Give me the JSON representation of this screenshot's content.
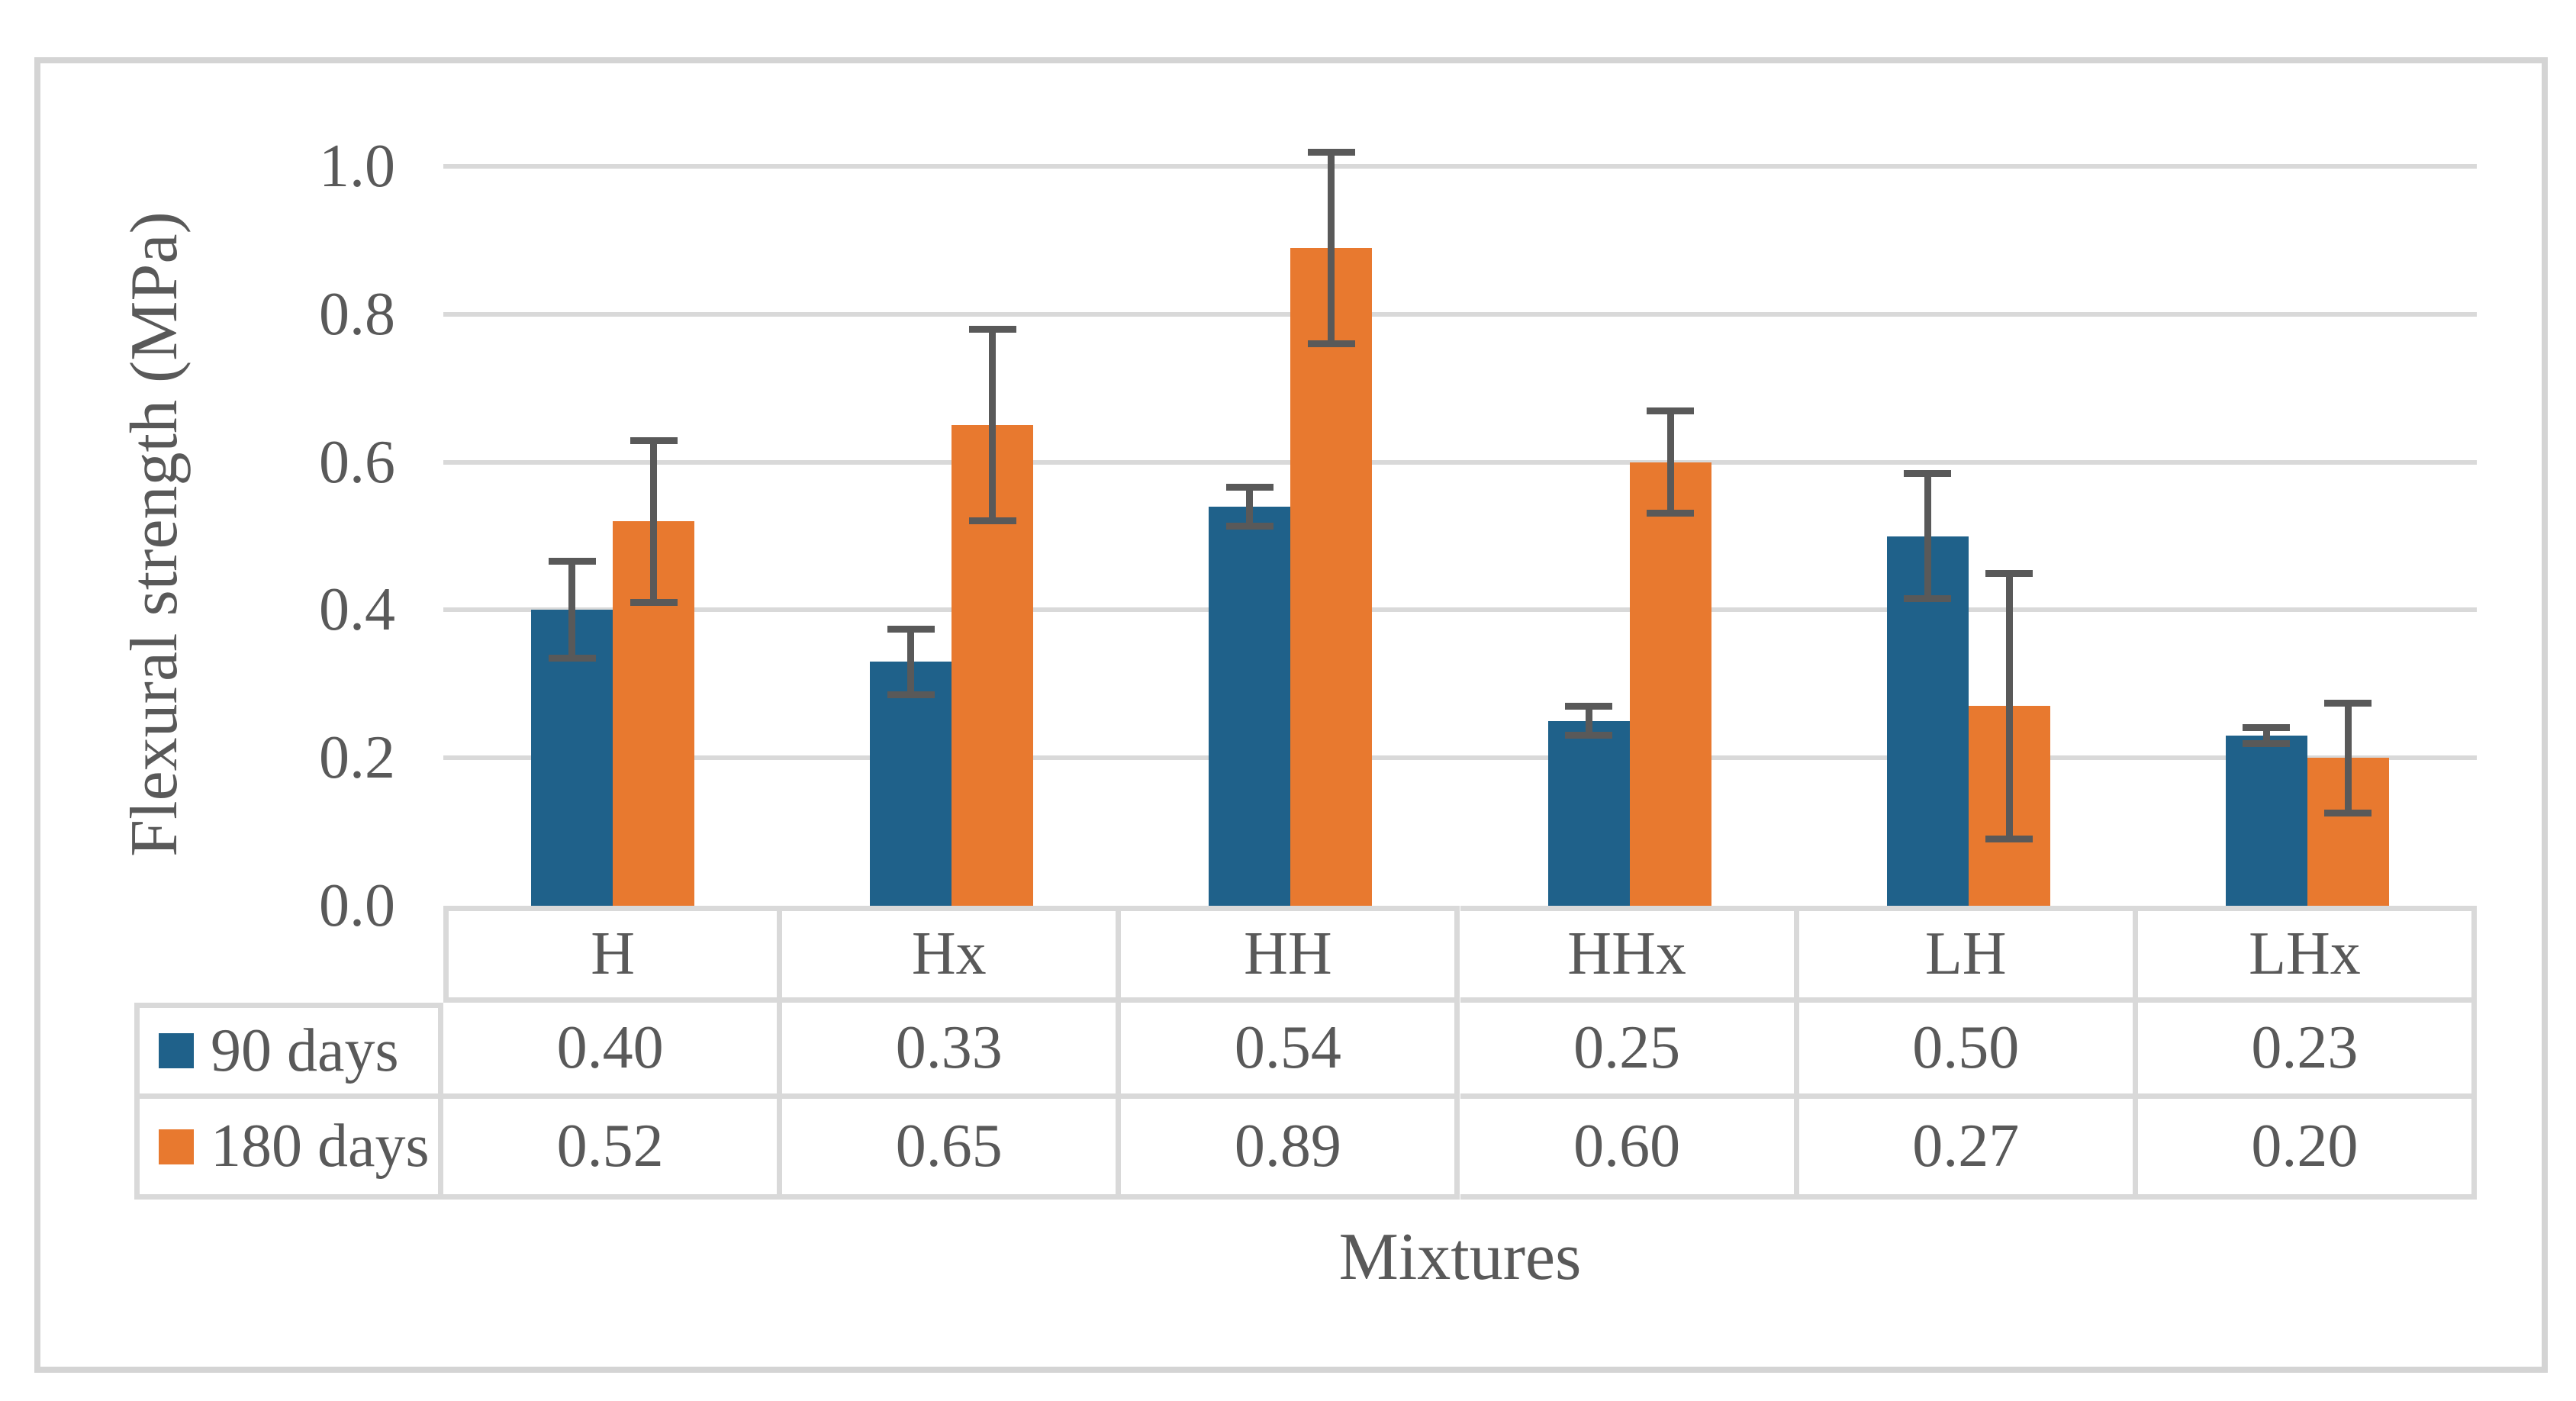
{
  "chart_data": {
    "type": "bar",
    "title": "",
    "xlabel": "Mixtures",
    "ylabel": "Flexural strength (MPa)",
    "categories": [
      "H",
      "Hx",
      "HH",
      "HHx",
      "LH",
      "LHx"
    ],
    "series": [
      {
        "name": "90 days",
        "color": "#1f618a",
        "values": [
          0.4,
          0.33,
          0.54,
          0.25,
          0.5,
          0.23
        ],
        "errors": [
          0.066,
          0.045,
          0.027,
          0.02,
          0.085,
          0.011
        ]
      },
      {
        "name": "180 days",
        "color": "#e8792f",
        "values": [
          0.52,
          0.65,
          0.89,
          0.6,
          0.27,
          0.2
        ],
        "errors": [
          0.11,
          0.13,
          0.13,
          0.07,
          0.18,
          0.075
        ]
      }
    ],
    "ylim": [
      0.0,
      1.0
    ],
    "ytick_labels": [
      "0.0",
      "0.2",
      "0.4",
      "0.6",
      "0.8",
      "1.0"
    ],
    "grid": true,
    "error_bars": true,
    "legend_position": "table-left",
    "data_table": {
      "column_headers": [
        "H",
        "Hx",
        "HH",
        "HHx",
        "LH",
        "LHx"
      ],
      "rows": [
        {
          "label": "90 days",
          "cells": [
            "0.40",
            "0.33",
            "0.54",
            "0.25",
            "0.50",
            "0.23"
          ]
        },
        {
          "label": "180 days",
          "cells": [
            "0.52",
            "0.65",
            "0.89",
            "0.60",
            "0.27",
            "0.20"
          ]
        }
      ]
    }
  },
  "colors": {
    "series_90_days": "#1f618a",
    "series_180_days": "#e8792f",
    "error_bar": "#595959",
    "text": "#595959",
    "gridline": "#d9d9d9",
    "table_border": "#d9d9d9",
    "figure_border": "#d4d4d4",
    "background": "#ffffff"
  }
}
